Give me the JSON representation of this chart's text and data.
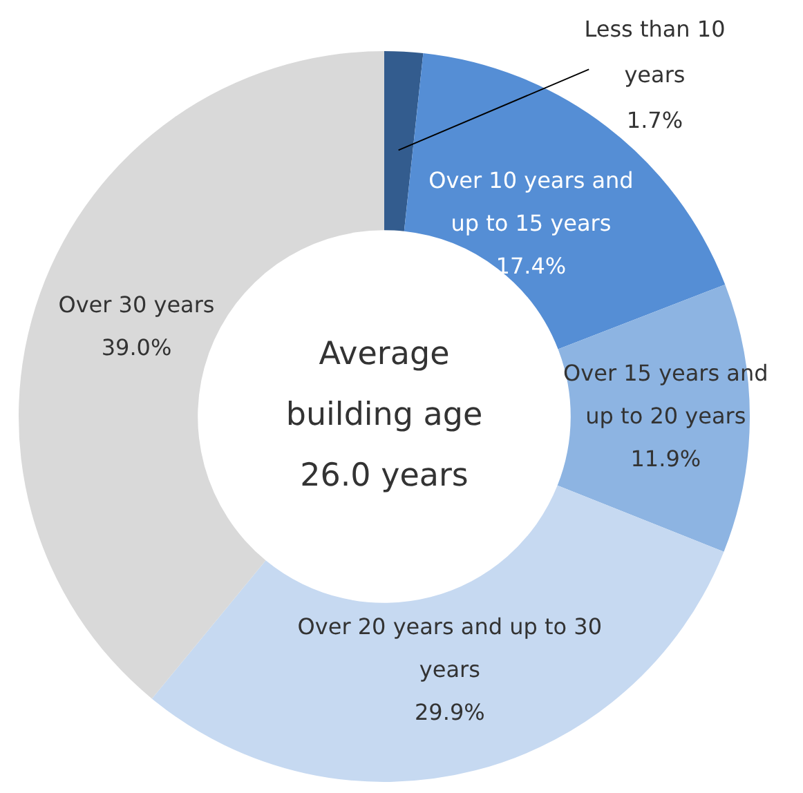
{
  "chart_data": {
    "type": "donut",
    "title": "Average building age 26.0 years",
    "categories": [
      "Less than 10 years",
      "Over 10 years and up to 15 years",
      "Over 15 years and up to 20 years",
      "Over 20 years and up to 30 years",
      "Over 30 years"
    ],
    "values": [
      1.7,
      17.4,
      11.9,
      29.9,
      39.0
    ],
    "value_labels": [
      "1.7%",
      "17.4%",
      "11.9%",
      "29.9%",
      "39.0%"
    ],
    "colors": [
      "#335c8e",
      "#558ed5",
      "#8db4e2",
      "#c6d9f1",
      "#d9d9d9"
    ],
    "legend": false
  }
}
